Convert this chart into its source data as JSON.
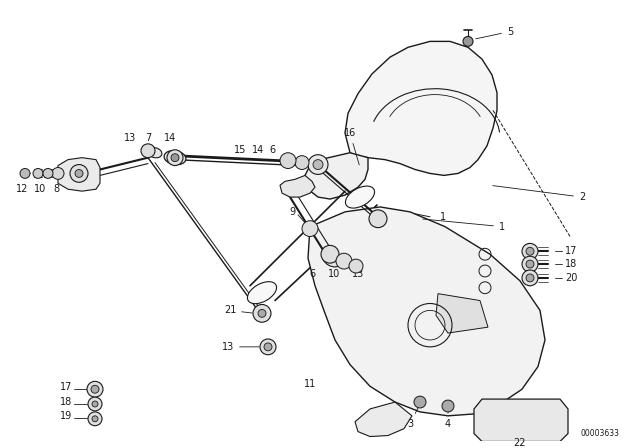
{
  "background_color": "#ffffff",
  "line_color": "#1a1a1a",
  "diagram_code_text": "00003633",
  "fig_width": 6.4,
  "fig_height": 4.48,
  "dpi": 100
}
